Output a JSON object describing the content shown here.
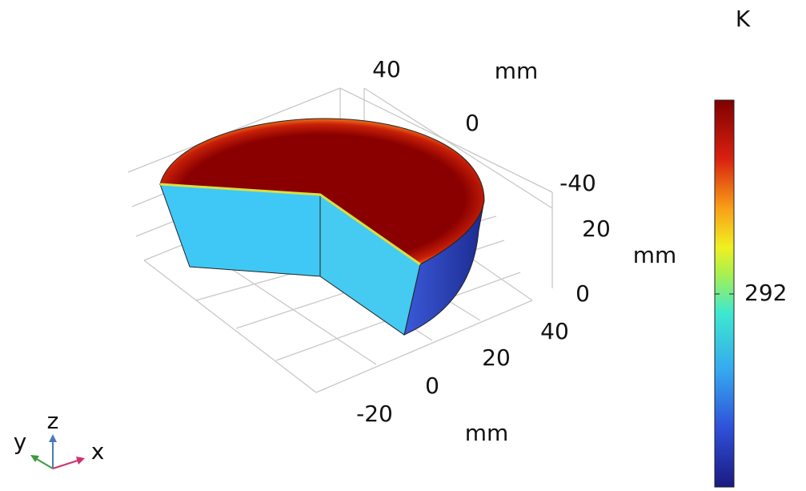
{
  "colorbar": {
    "unit": "K",
    "ticks": [
      292
    ]
  },
  "axes": {
    "y": {
      "ticks": [
        40,
        0,
        -40
      ],
      "unit": "mm"
    },
    "z": {
      "ticks": [
        20,
        0
      ],
      "unit": "mm"
    },
    "x": {
      "ticks": [
        40,
        20,
        0,
        -20
      ],
      "unit": "mm"
    }
  },
  "triad": {
    "y": "y",
    "z": "z",
    "x": "x"
  }
}
